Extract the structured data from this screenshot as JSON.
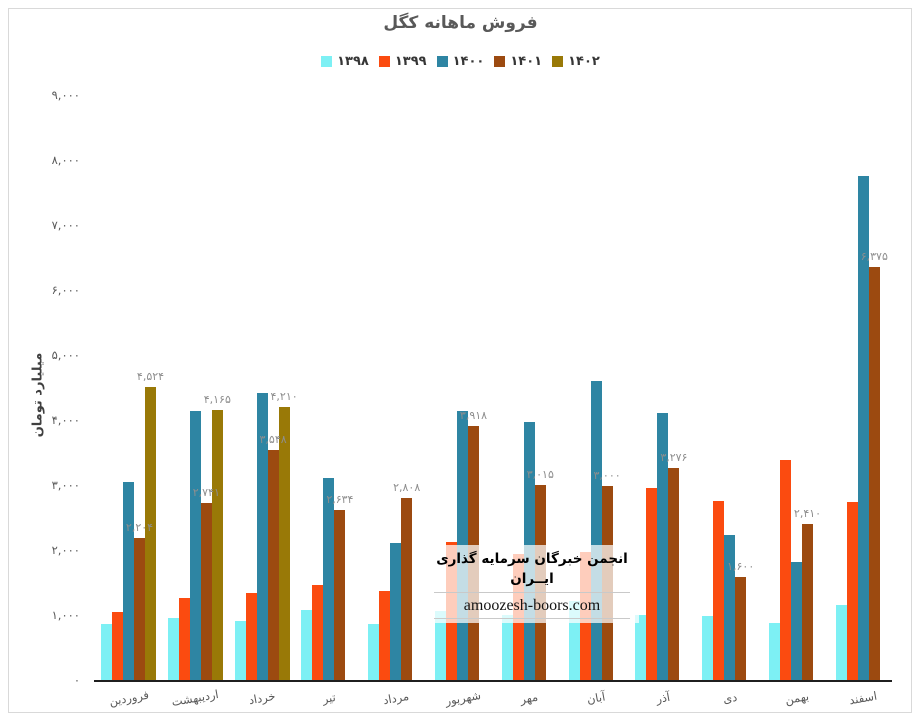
{
  "title": "فروش ماهانه کگل",
  "watermark": {
    "organization": "انجمن خبرگان سرمایه گذاری ایــران",
    "website": "amoozesh-boors.com"
  },
  "chart_data": {
    "type": "bar",
    "title": "فروش ماهانه کگل",
    "xlabel": "",
    "ylabel": "میلیارد تومان",
    "ylim": [
      0,
      9000
    ],
    "grid": false,
    "legend_position": "top-center",
    "categories": [
      "فروردین",
      "اردیبهشت",
      "خرداد",
      "تیر",
      "مرداد",
      "شهریور",
      "مهر",
      "آبان",
      "آذر",
      "دی",
      "بهمن",
      "اسفند"
    ],
    "yticks": [
      {
        "value": 0,
        "label": "۰"
      },
      {
        "value": 1000,
        "label": "۱,۰۰۰"
      },
      {
        "value": 2000,
        "label": "۲,۰۰۰"
      },
      {
        "value": 3000,
        "label": "۳,۰۰۰"
      },
      {
        "value": 4000,
        "label": "۴,۰۰۰"
      },
      {
        "value": 5000,
        "label": "۵,۰۰۰"
      },
      {
        "value": 6000,
        "label": "۶,۰۰۰"
      },
      {
        "value": 7000,
        "label": "۷,۰۰۰"
      },
      {
        "value": 8000,
        "label": "۸,۰۰۰"
      },
      {
        "value": 9000,
        "label": "۹,۰۰۰"
      }
    ],
    "series": [
      {
        "name": "۱۳۹۸",
        "color": "#7df0f4",
        "values": [
          880,
          970,
          920,
          1090,
          870,
          1080,
          1015,
          1230,
          1015,
          1000,
          890,
          1170
        ]
      },
      {
        "name": "۱۳۹۹",
        "color": "#fb4b10",
        "values": [
          1060,
          1280,
          1360,
          1480,
          1390,
          2140,
          1950,
          1990,
          2970,
          2770,
          3400,
          2750
        ]
      },
      {
        "name": "۱۴۰۰",
        "color": "#2e85a3",
        "values": [
          3060,
          4160,
          4430,
          3120,
          2130,
          4150,
          3990,
          4620,
          4120,
          2250,
          1830,
          7770
        ]
      },
      {
        "name": "۱۴۰۱",
        "color": "#9c4a10",
        "values": [
          2204,
          2741,
          3548,
          2634,
          2808,
          3918,
          3015,
          3000,
          3276,
          1600,
          2410,
          6375
        ],
        "labels": [
          "۲,۲۰۴",
          "۲,۷۴۱",
          "۳,۵۴۸",
          "۲,۶۳۴",
          "۲,۸۰۸",
          "۳,۹۱۸",
          "۳,۰۱۵",
          "۳,۰۰۰",
          "۳,۲۷۶",
          "۱,۶۰۰",
          "۲,۴۱۰",
          "۶,۳۷۵"
        ]
      },
      {
        "name": "۱۴۰۲",
        "color": "#997907",
        "values": [
          4524,
          4165,
          4210,
          null,
          null,
          null,
          null,
          null,
          null,
          null,
          null,
          null
        ],
        "labels": [
          "۴,۵۲۴",
          "۴,۱۶۵",
          "۴,۲۱۰",
          null,
          null,
          null,
          null,
          null,
          null,
          null,
          null,
          null
        ]
      }
    ]
  }
}
